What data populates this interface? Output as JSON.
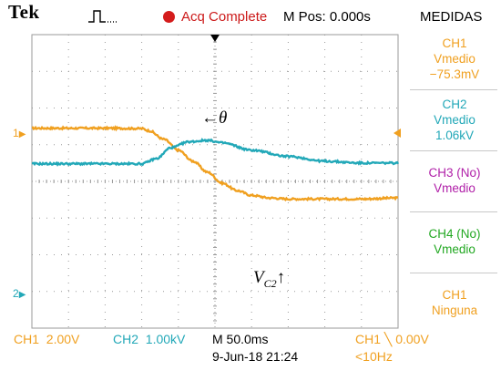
{
  "header": {
    "brand": "Tek",
    "status": "Acq Complete",
    "position": "M Pos: 0.000s",
    "menu_title": "MEDIDAS"
  },
  "colors": {
    "ch1": "#f0a020",
    "ch2": "#22a8b8",
    "ch3": "#b01fa8",
    "ch4": "#22a822",
    "grid": "#9a9a9a"
  },
  "measurements": [
    {
      "line1": "CH1",
      "line2": "Vmedio",
      "line3": "−75.3mV"
    },
    {
      "line1": "CH2",
      "line2": "Vmedio",
      "line3": "1.06kV"
    },
    {
      "line1": "CH3 (No)",
      "line2": "Vmedio"
    },
    {
      "line1": "CH4 (No)",
      "line2": "Vmedio"
    },
    {
      "line1": "CH1",
      "line2": "Ninguna"
    }
  ],
  "markers": {
    "ch1": "1",
    "ch2": "2"
  },
  "annotations": {
    "theta": "←θ",
    "vc2_v": "V",
    "vc2_sub": "C2",
    "vc2_arrow": "↑"
  },
  "footer": {
    "ch1_scale": "CH1  2.00V",
    "ch2_scale": "CH2  1.00kV",
    "timebase": "M 50.0ms",
    "date": "9-Jun-18 21:24",
    "trigger": "CH1 ╲ 0.00V",
    "freq": "<10Hz"
  },
  "chart_data": {
    "type": "line",
    "x_divisions": 10,
    "y_divisions": 8,
    "timebase_per_div": "50.0ms",
    "series": [
      {
        "name": "CH1",
        "scale": "2.00V/div",
        "x": [
          0,
          1,
          2,
          3,
          3.2,
          3.6,
          4.0,
          4.4,
          4.8,
          5.2,
          5.6,
          6,
          6.5,
          7,
          8,
          9,
          10
        ],
        "y": [
          1.45,
          1.45,
          1.45,
          1.44,
          1.38,
          1.15,
          0.85,
          0.55,
          0.25,
          -0.05,
          -0.25,
          -0.38,
          -0.45,
          -0.48,
          -0.48,
          -0.48,
          -0.45
        ]
      },
      {
        "name": "CH2",
        "scale": "1.00kV/div",
        "x": [
          0,
          1,
          2,
          3,
          3.4,
          3.8,
          4.3,
          4.8,
          5.2,
          6,
          7,
          8,
          9,
          10
        ],
        "y": [
          0.48,
          0.48,
          0.48,
          0.48,
          0.62,
          0.92,
          1.08,
          1.12,
          1.05,
          0.85,
          0.68,
          0.55,
          0.5,
          0.5
        ]
      }
    ],
    "center_division_y": 4
  }
}
